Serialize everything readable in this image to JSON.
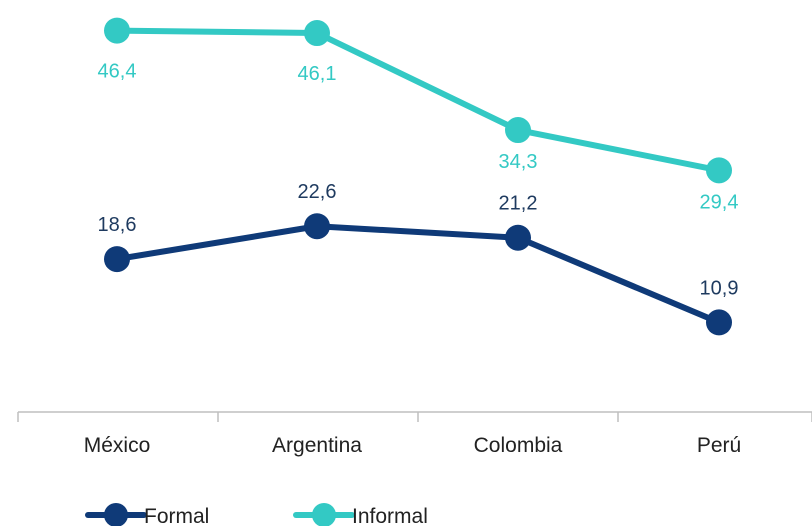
{
  "chart_data": {
    "type": "line",
    "categories": [
      "México",
      "Argentina",
      "Colombia",
      "Perú"
    ],
    "series": [
      {
        "name": "Formal",
        "values": [
          18.6,
          22.6,
          21.2,
          10.9
        ],
        "labels": [
          "18,6",
          "22,6",
          "21,2",
          "10,9"
        ],
        "color": "#0f3a78"
      },
      {
        "name": "Informal",
        "values": [
          46.4,
          46.1,
          34.3,
          29.4
        ],
        "labels": [
          "46,4",
          "46,1",
          "34,3",
          "29,4"
        ],
        "color": "#33c9c4"
      }
    ],
    "ylim": [
      0,
      50
    ],
    "grid": false,
    "legend_position": "bottom-left",
    "axis_color": "#bfbfbf"
  }
}
